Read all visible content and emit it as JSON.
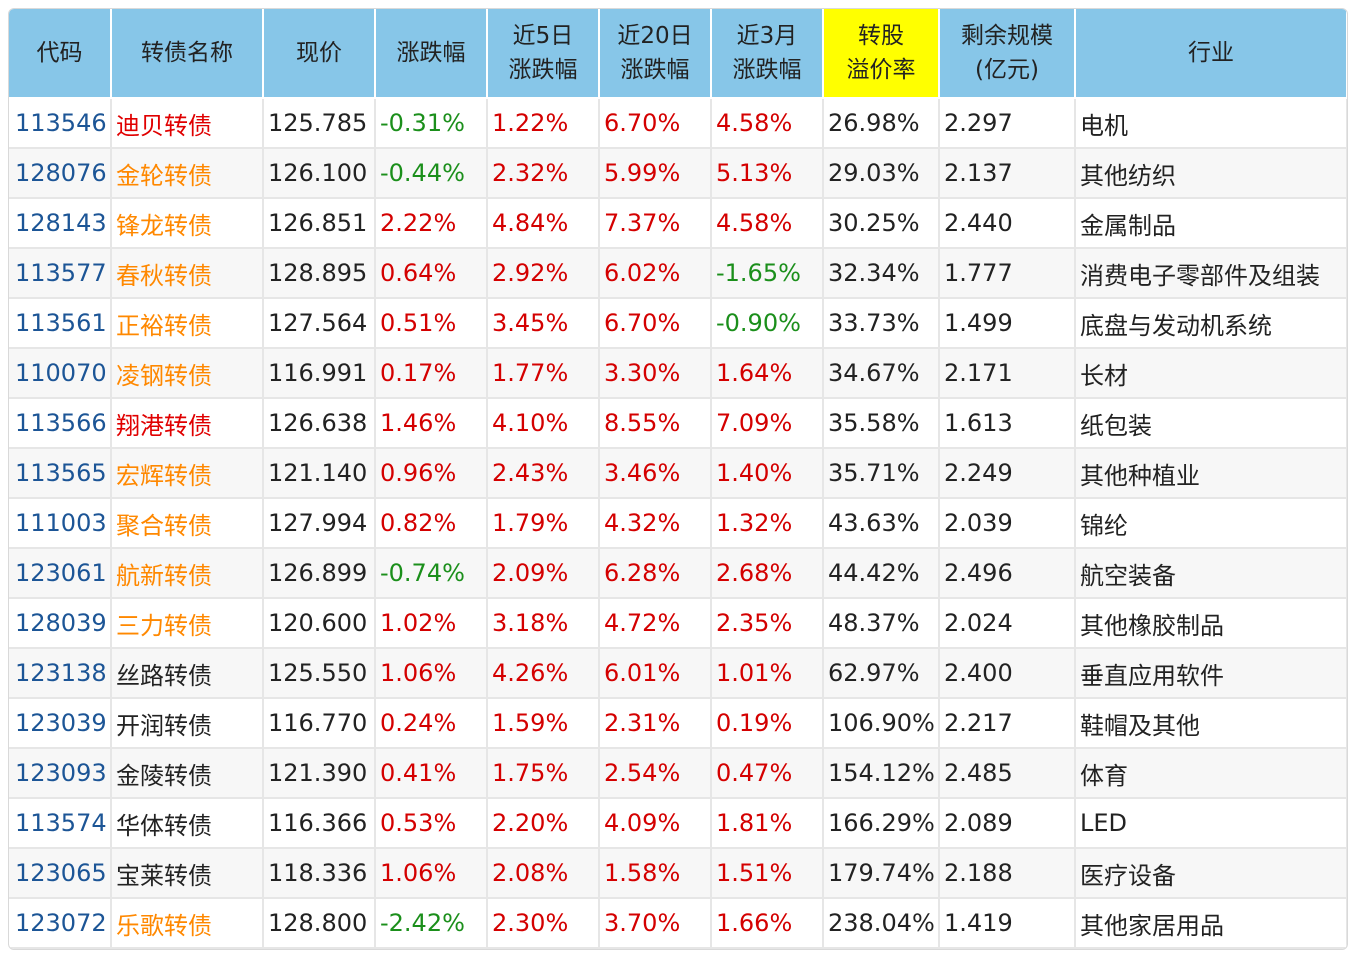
{
  "table": {
    "headers": [
      "代码",
      "转债名称",
      "现价",
      "涨跌幅",
      "近5日\n涨跌幅",
      "近20日\n涨跌幅",
      "近3月\n涨跌幅",
      "转股\n溢价率",
      "剩余规模\n(亿元)",
      "行业"
    ],
    "highlight_header_index": 7,
    "colors": {
      "header_bg": "#87c6e8",
      "highlight_bg": "#ffff00",
      "code": "#1c5596",
      "up": "#d40000",
      "down": "#1b8f1b",
      "name_orange": "#ff8800",
      "name_red": "#e00000"
    },
    "rows": [
      {
        "code": "113546",
        "name": "迪贝转债",
        "name_color": "red",
        "price": "125.785",
        "chg": "-0.31%",
        "chg5": "1.22%",
        "chg20": "6.70%",
        "chg3m": "4.58%",
        "premium": "26.98%",
        "scale": "2.297",
        "industry": "电机"
      },
      {
        "code": "128076",
        "name": "金轮转债",
        "name_color": "orange",
        "price": "126.100",
        "chg": "-0.44%",
        "chg5": "2.32%",
        "chg20": "5.99%",
        "chg3m": "5.13%",
        "premium": "29.03%",
        "scale": "2.137",
        "industry": "其他纺织"
      },
      {
        "code": "128143",
        "name": "锋龙转债",
        "name_color": "orange",
        "price": "126.851",
        "chg": "2.22%",
        "chg5": "4.84%",
        "chg20": "7.37%",
        "chg3m": "4.58%",
        "premium": "30.25%",
        "scale": "2.440",
        "industry": "金属制品"
      },
      {
        "code": "113577",
        "name": "春秋转债",
        "name_color": "orange",
        "price": "128.895",
        "chg": "0.64%",
        "chg5": "2.92%",
        "chg20": "6.02%",
        "chg3m": "-1.65%",
        "premium": "32.34%",
        "scale": "1.777",
        "industry": "消费电子零部件及组装"
      },
      {
        "code": "113561",
        "name": "正裕转债",
        "name_color": "orange",
        "price": "127.564",
        "chg": "0.51%",
        "chg5": "3.45%",
        "chg20": "6.70%",
        "chg3m": "-0.90%",
        "premium": "33.73%",
        "scale": "1.499",
        "industry": "底盘与发动机系统"
      },
      {
        "code": "110070",
        "name": "凌钢转债",
        "name_color": "orange",
        "price": "116.991",
        "chg": "0.17%",
        "chg5": "1.77%",
        "chg20": "3.30%",
        "chg3m": "1.64%",
        "premium": "34.67%",
        "scale": "2.171",
        "industry": "长材"
      },
      {
        "code": "113566",
        "name": "翔港转债",
        "name_color": "red",
        "price": "126.638",
        "chg": "1.46%",
        "chg5": "4.10%",
        "chg20": "8.55%",
        "chg3m": "7.09%",
        "premium": "35.58%",
        "scale": "1.613",
        "industry": "纸包装"
      },
      {
        "code": "113565",
        "name": "宏辉转债",
        "name_color": "orange",
        "price": "121.140",
        "chg": "0.96%",
        "chg5": "2.43%",
        "chg20": "3.46%",
        "chg3m": "1.40%",
        "premium": "35.71%",
        "scale": "2.249",
        "industry": "其他种植业"
      },
      {
        "code": "111003",
        "name": "聚合转债",
        "name_color": "orange",
        "price": "127.994",
        "chg": "0.82%",
        "chg5": "1.79%",
        "chg20": "4.32%",
        "chg3m": "1.32%",
        "premium": "43.63%",
        "scale": "2.039",
        "industry": "锦纶"
      },
      {
        "code": "123061",
        "name": "航新转债",
        "name_color": "orange",
        "price": "126.899",
        "chg": "-0.74%",
        "chg5": "2.09%",
        "chg20": "6.28%",
        "chg3m": "2.68%",
        "premium": "44.42%",
        "scale": "2.496",
        "industry": "航空装备"
      },
      {
        "code": "128039",
        "name": "三力转债",
        "name_color": "orange",
        "price": "120.600",
        "chg": "1.02%",
        "chg5": "3.18%",
        "chg20": "4.72%",
        "chg3m": "2.35%",
        "premium": "48.37%",
        "scale": "2.024",
        "industry": "其他橡胶制品"
      },
      {
        "code": "123138",
        "name": "丝路转债",
        "name_color": "black",
        "price": "125.550",
        "chg": "1.06%",
        "chg5": "4.26%",
        "chg20": "6.01%",
        "chg3m": "1.01%",
        "premium": "62.97%",
        "scale": "2.400",
        "industry": "垂直应用软件"
      },
      {
        "code": "123039",
        "name": "开润转债",
        "name_color": "black",
        "price": "116.770",
        "chg": "0.24%",
        "chg5": "1.59%",
        "chg20": "2.31%",
        "chg3m": "0.19%",
        "premium": "106.90%",
        "scale": "2.217",
        "industry": "鞋帽及其他"
      },
      {
        "code": "123093",
        "name": "金陵转债",
        "name_color": "black",
        "price": "121.390",
        "chg": "0.41%",
        "chg5": "1.75%",
        "chg20": "2.54%",
        "chg3m": "0.47%",
        "premium": "154.12%",
        "scale": "2.485",
        "industry": "体育"
      },
      {
        "code": "113574",
        "name": "华体转债",
        "name_color": "black",
        "price": "116.366",
        "chg": "0.53%",
        "chg5": "2.20%",
        "chg20": "4.09%",
        "chg3m": "1.81%",
        "premium": "166.29%",
        "scale": "2.089",
        "industry": "LED"
      },
      {
        "code": "123065",
        "name": "宝莱转债",
        "name_color": "black",
        "price": "118.336",
        "chg": "1.06%",
        "chg5": "2.08%",
        "chg20": "1.58%",
        "chg3m": "1.51%",
        "premium": "179.74%",
        "scale": "2.188",
        "industry": "医疗设备"
      },
      {
        "code": "123072",
        "name": "乐歌转债",
        "name_color": "orange",
        "price": "128.800",
        "chg": "-2.42%",
        "chg5": "2.30%",
        "chg20": "3.70%",
        "chg3m": "1.66%",
        "premium": "238.04%",
        "scale": "1.419",
        "industry": "其他家居用品"
      }
    ]
  }
}
